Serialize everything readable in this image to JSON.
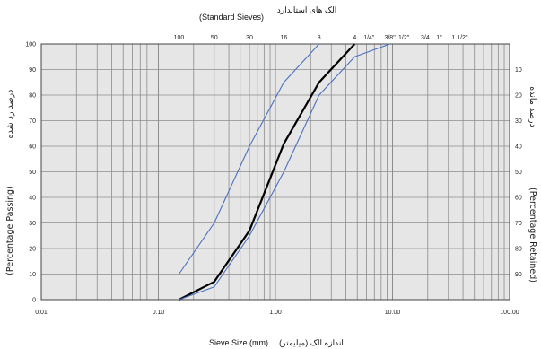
{
  "chart_data": {
    "type": "line",
    "title_top": "(Standard Sieves)",
    "title_top_fa": "الک های استاندارد",
    "xlabel": "Sieve Size (mm)",
    "xlabel_fa": "اندازه الک (میلیمتر)",
    "ylabel_left": "(Percentage Passing)",
    "ylabel_left_fa": "درصد رد شده",
    "ylabel_right": "(Percentage Retained)",
    "ylabel_right_fa": "درصد مانده",
    "x_scale": "log",
    "xlim": [
      0.01,
      100
    ],
    "ylim": [
      0,
      100
    ],
    "grid": true,
    "x_tick_labels": [
      "0.01",
      "0.10",
      "1.00",
      "10.00",
      "100.00"
    ],
    "y_tick_labels": [
      "0",
      "10",
      "20",
      "30",
      "40",
      "50",
      "60",
      "70",
      "80",
      "90",
      "100"
    ],
    "right_tick_labels": [
      "10",
      "20",
      "30",
      "40",
      "50",
      "60",
      "70",
      "80",
      "90"
    ],
    "sieve_labels": [
      {
        "label": "100",
        "mm": 0.15
      },
      {
        "label": "50",
        "mm": 0.3
      },
      {
        "label": "30",
        "mm": 0.6
      },
      {
        "label": "16",
        "mm": 1.18
      },
      {
        "label": "8",
        "mm": 2.36
      },
      {
        "label": "4",
        "mm": 4.75
      },
      {
        "label": "1/4\"",
        "mm": 6.3
      },
      {
        "label": "3/8\"",
        "mm": 9.5
      },
      {
        "label": "1/2\"",
        "mm": 12.5
      },
      {
        "label": "3/4",
        "mm": 19
      },
      {
        "label": "1\"",
        "mm": 25
      },
      {
        "label": "1 1/2\"",
        "mm": 37.5
      }
    ],
    "series": [
      {
        "color": "#4a70c0",
        "width": 1.1,
        "x": [
          0.15,
          0.3,
          0.6,
          1.18,
          2.36
        ],
        "y": [
          10,
          30,
          60,
          85,
          100
        ]
      },
      {
        "color": "#000000",
        "width": 2.2,
        "x": [
          0.15,
          0.3,
          0.6,
          1.18,
          2.36,
          4.75
        ],
        "y": [
          0,
          7,
          27,
          61,
          85,
          100
        ]
      },
      {
        "color": "#4a70c0",
        "width": 1.1,
        "x": [
          0.15,
          0.3,
          0.6,
          1.18,
          2.36,
          4.75,
          9.5
        ],
        "y": [
          0,
          5,
          25,
          50,
          80,
          95,
          100
        ]
      }
    ]
  }
}
